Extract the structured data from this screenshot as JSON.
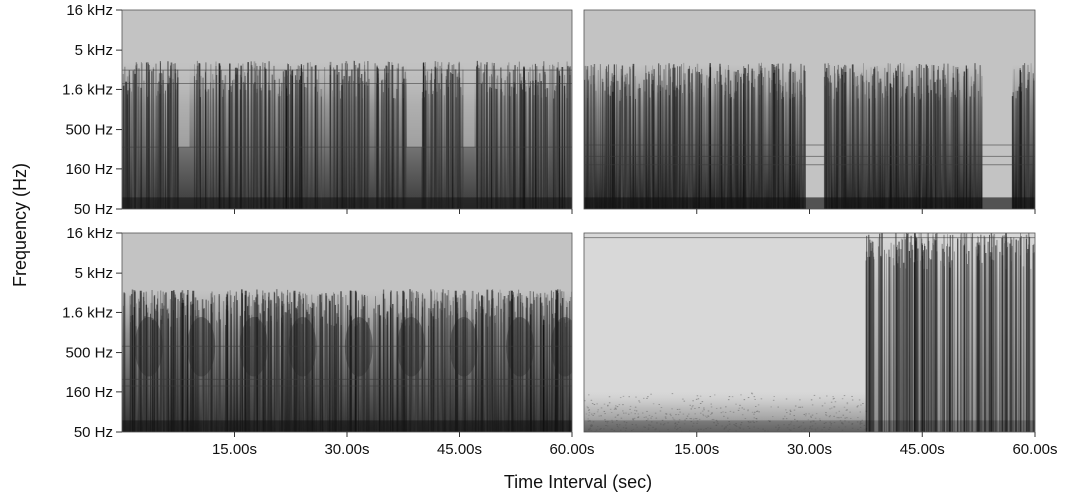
{
  "chart_data": {
    "type": "heatmap",
    "description_kind": "spectrogram grid 2x2",
    "ylabel": "Frequency (Hz)",
    "xlabel": "Time Interval (sec)",
    "y_scale": "log",
    "y_ticks": [
      {
        "value": 50,
        "label": "50 Hz"
      },
      {
        "value": 160,
        "label": "160 Hz"
      },
      {
        "value": 500,
        "label": "500 Hz"
      },
      {
        "value": 1600,
        "label": "1.6 kHz"
      },
      {
        "value": 5000,
        "label": "5 kHz"
      },
      {
        "value": 16000,
        "label": "16 kHz"
      }
    ],
    "x_ticks": [
      {
        "value": 15,
        "label": "15.00s"
      },
      {
        "value": 30,
        "label": "30.00s"
      },
      {
        "value": 45,
        "label": "45.00s"
      },
      {
        "value": 60,
        "label": "60.00s"
      }
    ],
    "xlim": [
      0,
      60
    ],
    "ylim": [
      50,
      16000
    ],
    "colormap": {
      "low": "#c8c8c8",
      "high": "#0a0a0a"
    },
    "panels": [
      {
        "name": "top-left",
        "background": "#c3c3c3",
        "activity": [
          {
            "start": 0,
            "end": 60,
            "top_hz": 3500
          }
        ],
        "pauses": [
          [
            7.5,
            9
          ],
          [
            38,
            40
          ],
          [
            45.5,
            47
          ]
        ],
        "low_band_intensity": 0.75,
        "hum_lines_hz": [
          300,
          1900,
          2800
        ]
      },
      {
        "name": "top-right",
        "background": "#c3c3c3",
        "activity": [
          {
            "start": 0,
            "end": 7.5,
            "top_hz": 3200
          },
          {
            "start": 7.5,
            "end": 29.5,
            "top_hz": 3300
          },
          {
            "start": 32,
            "end": 53,
            "top_hz": 3300
          },
          {
            "start": 57,
            "end": 60,
            "top_hz": 3300
          }
        ],
        "low_band_intensity": 0.9,
        "hum_lines_hz": [
          180,
          230,
          320
        ]
      },
      {
        "name": "bottom-left",
        "background": "#c3c3c3",
        "activity": [
          {
            "start": 0,
            "end": 60,
            "top_hz": 3000
          }
        ],
        "bursts": [
          2.5,
          9.5,
          16.5,
          23,
          30.5,
          37.5,
          44.5,
          52,
          58
        ],
        "low_band_intensity": 0.8,
        "hum_lines_hz": [
          190,
          230,
          600
        ]
      },
      {
        "name": "bottom-right",
        "background": "#d8d8d8",
        "activity": [
          {
            "start": 37.5,
            "end": 60,
            "top_hz": 16000
          }
        ],
        "quiet_noise": {
          "start": 0,
          "end": 37.5,
          "top_hz": 160
        },
        "low_band_intensity": 0.35,
        "hum_lines_hz": [
          14000
        ]
      }
    ]
  }
}
